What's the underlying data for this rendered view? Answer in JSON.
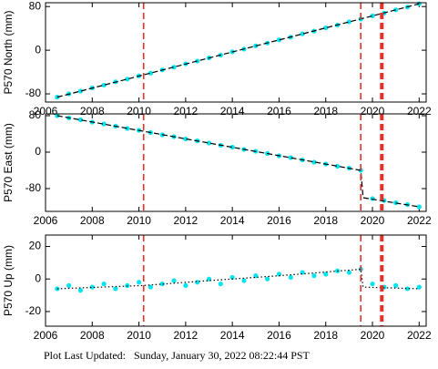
{
  "chart_data": [
    {
      "type": "scatter",
      "ylabel": "P570 North (mm)",
      "xlim": [
        2006,
        2022.3
      ],
      "xticks": [
        2006,
        2008,
        2010,
        2012,
        2014,
        2016,
        2018,
        2020,
        2022
      ],
      "ylim": [
        -95,
        87
      ],
      "yticks": [
        80,
        0,
        -80
      ],
      "events": [
        2010.2,
        2019.5,
        2020.4
      ],
      "event_color": "#e8302a",
      "x": [
        2006.5,
        2007,
        2007.5,
        2008,
        2008.5,
        2009,
        2009.5,
        2010,
        2010.5,
        2011,
        2011.5,
        2012,
        2012.5,
        2013,
        2013.5,
        2014,
        2014.5,
        2015,
        2015.5,
        2016,
        2016.5,
        2017,
        2017.5,
        2018,
        2018.5,
        2019,
        2019.5,
        2020,
        2020.5,
        2021,
        2021.5,
        2022
      ],
      "series": [
        {
          "color": "#00e5ee",
          "values": [
            -86,
            -80,
            -75,
            -69,
            -64,
            -58,
            -53,
            -47,
            -42,
            -36,
            -31,
            -25,
            -20,
            -14,
            -9,
            -3,
            2,
            8,
            13,
            19,
            24,
            30,
            35,
            41,
            46,
            52,
            57,
            63,
            68,
            74,
            79,
            85
          ]
        },
        {
          "type": "line",
          "style": "dashed",
          "color": "#000000",
          "x": [
            2006.5,
            2022
          ],
          "values": [
            -86,
            85
          ]
        }
      ]
    },
    {
      "type": "scatter",
      "ylabel": "P570 East (mm)",
      "xlim": [
        2006,
        2022.3
      ],
      "xticks": [
        2006,
        2008,
        2010,
        2012,
        2014,
        2016,
        2018,
        2020,
        2022
      ],
      "ylim": [
        -130,
        84
      ],
      "yticks": [
        80,
        0,
        -80
      ],
      "events": [
        2010.2,
        2019.5,
        2020.4
      ],
      "event_color": "#e8302a",
      "x": [
        2006.5,
        2007,
        2007.5,
        2008,
        2008.5,
        2009,
        2009.5,
        2010,
        2010.5,
        2011,
        2011.5,
        2012,
        2012.5,
        2013,
        2013.5,
        2014,
        2014.5,
        2015,
        2015.5,
        2016,
        2016.5,
        2017,
        2017.5,
        2018,
        2018.5,
        2019,
        2019.5,
        2020,
        2020.5,
        2021,
        2021.5,
        2022
      ],
      "series": [
        {
          "color": "#00e5ee",
          "values": [
            80,
            75,
            71,
            66,
            62,
            57,
            52,
            48,
            43,
            38,
            34,
            29,
            25,
            20,
            15,
            11,
            6,
            2,
            -3,
            -8,
            -12,
            -17,
            -22,
            -26,
            -31,
            -35,
            -40,
            -102,
            -106,
            -111,
            -115,
            -120
          ]
        },
        {
          "type": "line",
          "style": "dashed",
          "color": "#000000",
          "x": [
            2006.5,
            2019.5,
            2019.6,
            2022
          ],
          "values": [
            80,
            -40,
            -100,
            -120
          ]
        }
      ]
    },
    {
      "type": "scatter",
      "ylabel": "P570 Up (mm)",
      "xlim": [
        2006,
        2022.3
      ],
      "xticks": [
        2006,
        2008,
        2010,
        2012,
        2014,
        2016,
        2018,
        2020,
        2022
      ],
      "ylim": [
        -29,
        27
      ],
      "yticks": [
        20,
        0,
        -20
      ],
      "events": [
        2010.2,
        2019.5,
        2020.4
      ],
      "event_color": "#e8302a",
      "x": [
        2006.5,
        2007,
        2007.5,
        2008,
        2008.5,
        2009,
        2009.5,
        2010,
        2010.5,
        2011,
        2011.5,
        2012,
        2012.5,
        2013,
        2013.5,
        2014,
        2014.5,
        2015,
        2015.5,
        2016,
        2016.5,
        2017,
        2017.5,
        2018,
        2018.5,
        2019,
        2019.5,
        2020,
        2020.5,
        2021,
        2021.5,
        2022
      ],
      "series": [
        {
          "color": "#00e5ee",
          "values": [
            -6,
            -4,
            -7,
            -5,
            -3,
            -6,
            -4,
            -2,
            -5,
            -3,
            -1,
            -4,
            -2,
            0,
            -3,
            1,
            -1,
            2,
            0,
            3,
            1,
            4,
            2,
            3,
            5,
            4,
            6,
            -3,
            -5,
            -4,
            -6,
            -5
          ]
        },
        {
          "type": "line",
          "style": "dotted",
          "color": "#000000",
          "x": [
            2006.5,
            2010.2,
            2013,
            2016,
            2019.5,
            2019.6,
            2022
          ],
          "values": [
            -6,
            -4,
            -1,
            2,
            6,
            -5,
            -6
          ]
        }
      ]
    }
  ],
  "footer": "Plot Last Updated:   Sunday, January 30, 2022 08:22:44 PST"
}
